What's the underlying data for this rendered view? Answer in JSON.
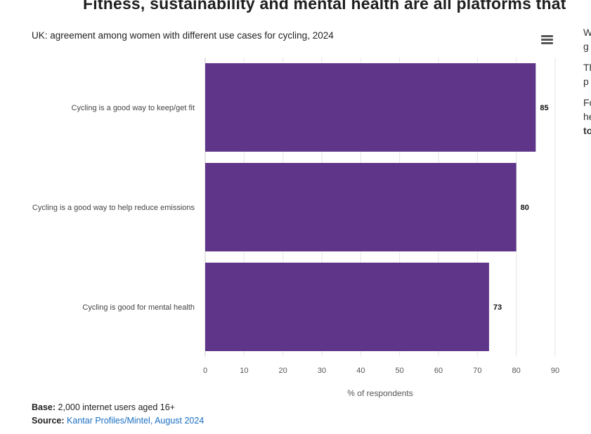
{
  "heading": "Fitness, sustainability and mental health are all platforms that",
  "right_column": [
    "W",
    "g",
    "Th",
    "p",
    "Fo",
    "he",
    "to"
  ],
  "chart_data": {
    "type": "bar",
    "orientation": "horizontal",
    "title": "UK: agreement among women with different use cases for cycling, 2024",
    "categories": [
      "Cycling is a good way to keep/get fit",
      "Cycling is a good way to help reduce emissions",
      "Cycling is good for mental health"
    ],
    "values": [
      85,
      80,
      73
    ],
    "xlabel": "% of respondents",
    "xlim": [
      0,
      90
    ],
    "xticks": [
      0,
      10,
      20,
      30,
      40,
      50,
      60,
      70,
      80,
      90
    ],
    "grid": true,
    "bar_color": "#5e3589"
  },
  "footer": {
    "base_label": "Base:",
    "base_text": " 2,000 internet users aged 16+",
    "source_label": "Source:",
    "source_link": "Kantar Profiles/Mintel, August 2024"
  }
}
